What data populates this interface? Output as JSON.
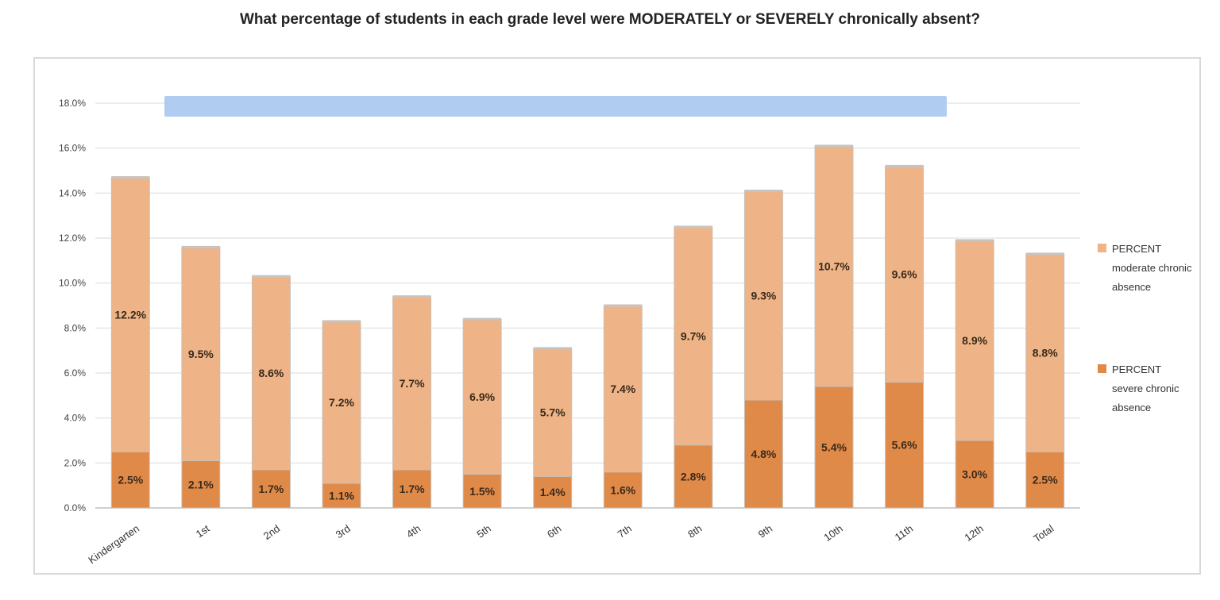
{
  "chart_data": {
    "type": "bar",
    "stacked": true,
    "title": "What percentage of students in each grade level were MODERATELY or SEVERELY chronically absent?",
    "categories": [
      "Kindergarten",
      "1st",
      "2nd",
      "3rd",
      "4th",
      "5th",
      "6th",
      "7th",
      "8th",
      "9th",
      "10th",
      "11th",
      "12th",
      "Total"
    ],
    "series": [
      {
        "name": "PERCENT severe chronic absence",
        "color": "#e08a4a",
        "values": [
          2.5,
          2.1,
          1.7,
          1.1,
          1.7,
          1.5,
          1.4,
          1.6,
          2.8,
          4.8,
          5.4,
          5.6,
          3.0,
          2.5
        ],
        "labels": [
          "2.5%",
          "2.1%",
          "1.7%",
          "1.1%",
          "1.7%",
          "1.5%",
          "1.4%",
          "1.6%",
          "2.8%",
          "4.8%",
          "5.4%",
          "5.6%",
          "3.0%",
          "2.5%"
        ]
      },
      {
        "name": "PERCENT moderate chronic absence",
        "color": "#eeb487",
        "values": [
          12.2,
          9.5,
          8.6,
          7.2,
          7.7,
          6.9,
          5.7,
          7.4,
          9.7,
          9.3,
          10.7,
          9.6,
          8.9,
          8.8
        ],
        "labels": [
          "12.2%",
          "9.5%",
          "8.6%",
          "7.2%",
          "7.7%",
          "6.9%",
          "5.7%",
          "7.4%",
          "9.7%",
          "9.3%",
          "10.7%",
          "9.6%",
          "8.9%",
          "8.8%"
        ]
      }
    ],
    "y_ticks": [
      "0.0%",
      "2.0%",
      "4.0%",
      "6.0%",
      "8.0%",
      "10.0%",
      "12.0%",
      "14.0%",
      "16.0%",
      "18.0%"
    ],
    "ylim": [
      0,
      18
    ],
    "grid": true,
    "legend": "right",
    "banner_color": "#a7c8f0"
  }
}
